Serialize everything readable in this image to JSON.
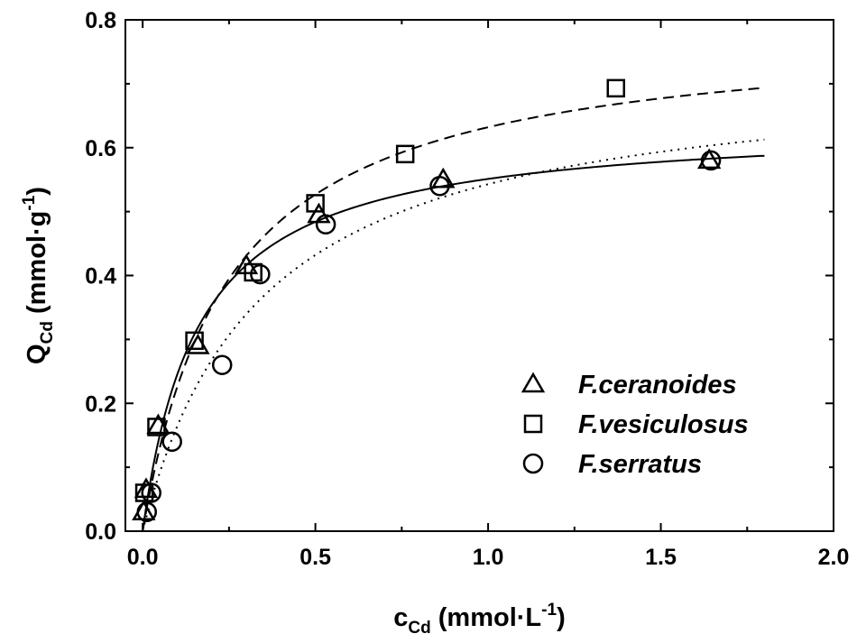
{
  "chart_data": {
    "type": "scatter",
    "xlabel": {
      "main": "c",
      "sub": "Cd",
      "rest": " (mmol·L",
      "sup": "-1",
      "end": ")"
    },
    "ylabel": {
      "main": "Q",
      "sub": "Cd",
      "rest": " (mmol·g",
      "sup": "-1",
      "end": ")"
    },
    "xlim": [
      -0.05,
      2.0
    ],
    "ylim": [
      0.0,
      0.8
    ],
    "xticks": [
      "0.0",
      "0.5",
      "1.0",
      "1.5",
      "2.0"
    ],
    "yticks": [
      "0.0",
      "0.2",
      "0.4",
      "0.6",
      "0.8"
    ],
    "grid": false,
    "legend_position": "bottom-right",
    "series": [
      {
        "name": "F.ceranoides",
        "marker": "triangle",
        "points": [
          {
            "x": 0.003,
            "y": 0.03
          },
          {
            "x": 0.01,
            "y": 0.065
          },
          {
            "x": 0.045,
            "y": 0.165
          },
          {
            "x": 0.16,
            "y": 0.29
          },
          {
            "x": 0.3,
            "y": 0.415
          },
          {
            "x": 0.51,
            "y": 0.495
          },
          {
            "x": 0.87,
            "y": 0.55
          },
          {
            "x": 1.64,
            "y": 0.58
          }
        ],
        "fit": {
          "style": "solid",
          "qmax": 0.64,
          "k": 6.2
        }
      },
      {
        "name": "F.vesiculosus",
        "marker": "square",
        "points": [
          {
            "x": 0.005,
            "y": 0.06
          },
          {
            "x": 0.04,
            "y": 0.163
          },
          {
            "x": 0.15,
            "y": 0.298
          },
          {
            "x": 0.32,
            "y": 0.405
          },
          {
            "x": 0.5,
            "y": 0.513
          },
          {
            "x": 0.76,
            "y": 0.59
          },
          {
            "x": 1.37,
            "y": 0.693
          }
        ],
        "fit": {
          "style": "dashed",
          "qmax": 0.79,
          "k": 4.0
        }
      },
      {
        "name": "F.serratus",
        "marker": "circle",
        "points": [
          {
            "x": 0.012,
            "y": 0.03
          },
          {
            "x": 0.025,
            "y": 0.06
          },
          {
            "x": 0.085,
            "y": 0.14
          },
          {
            "x": 0.23,
            "y": 0.26
          },
          {
            "x": 0.34,
            "y": 0.402
          },
          {
            "x": 0.53,
            "y": 0.48
          },
          {
            "x": 0.86,
            "y": 0.54
          },
          {
            "x": 1.645,
            "y": 0.58
          }
        ],
        "fit": {
          "style": "dotted",
          "qmax": 0.73,
          "k": 2.9
        }
      }
    ]
  }
}
